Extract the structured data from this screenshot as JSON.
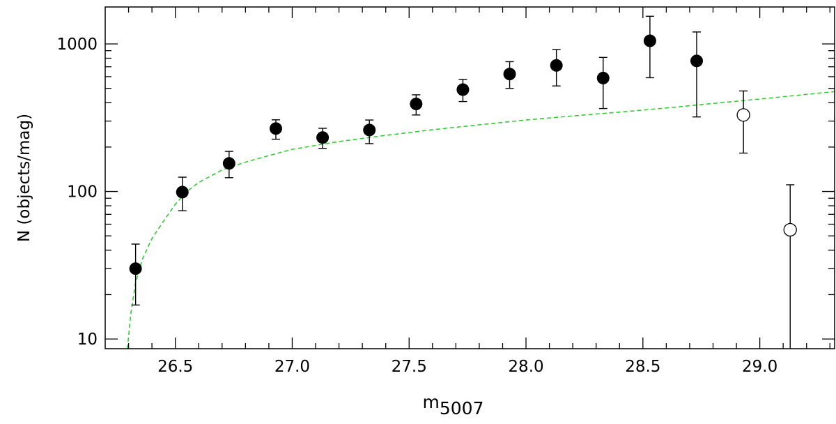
{
  "chart_data": {
    "type": "scatter",
    "title": "",
    "xlabel": "m",
    "xlabel_sub": "5007",
    "ylabel": "N (objects/mag)",
    "x_scale": "linear",
    "y_scale": "log",
    "xlim": [
      26.2,
      29.32
    ],
    "ylim": [
      8.6,
      1780
    ],
    "x_ticks": [
      26.5,
      27.0,
      27.5,
      28.0,
      28.5,
      29.0
    ],
    "x_tick_labels": [
      "26.5",
      "27.0",
      "27.5",
      "28.0",
      "28.5",
      "29.0"
    ],
    "y_ticks": [
      10,
      100,
      1000
    ],
    "y_tick_labels": [
      "10",
      "100",
      "1000"
    ],
    "grid": false,
    "legend": "none",
    "series": [
      {
        "marker": "filled-circle",
        "color": "#000000",
        "points": [
          {
            "x": 26.33,
            "y": 30,
            "lo": 17,
            "hi": 44
          },
          {
            "x": 26.53,
            "y": 99,
            "lo": 74,
            "hi": 125
          },
          {
            "x": 26.73,
            "y": 155,
            "lo": 124,
            "hi": 187
          },
          {
            "x": 26.93,
            "y": 267,
            "lo": 226,
            "hi": 306
          },
          {
            "x": 27.13,
            "y": 232,
            "lo": 196,
            "hi": 268
          },
          {
            "x": 27.33,
            "y": 261,
            "lo": 211,
            "hi": 305
          },
          {
            "x": 27.53,
            "y": 392,
            "lo": 330,
            "hi": 452
          },
          {
            "x": 27.73,
            "y": 490,
            "lo": 407,
            "hi": 575
          },
          {
            "x": 27.93,
            "y": 625,
            "lo": 499,
            "hi": 758
          },
          {
            "x": 28.13,
            "y": 715,
            "lo": 519,
            "hi": 915
          },
          {
            "x": 28.33,
            "y": 587,
            "lo": 365,
            "hi": 810
          },
          {
            "x": 28.53,
            "y": 1050,
            "lo": 590,
            "hi": 1540
          },
          {
            "x": 28.73,
            "y": 767,
            "lo": 320,
            "hi": 1205
          }
        ]
      },
      {
        "marker": "open-circle",
        "color": "#000000",
        "points": [
          {
            "x": 28.93,
            "y": 330,
            "lo": 182,
            "hi": 480
          },
          {
            "x": 29.13,
            "y": 55,
            "lo": 8.6,
            "hi": 111
          }
        ]
      }
    ],
    "fit_curve": {
      "style": "dashed",
      "color": "#33cc33",
      "points": [
        [
          26.295,
          8.6
        ],
        [
          26.31,
          15
        ],
        [
          26.33,
          24
        ],
        [
          26.36,
          35
        ],
        [
          26.4,
          48
        ],
        [
          26.45,
          63
        ],
        [
          26.5,
          82
        ],
        [
          26.55,
          100
        ],
        [
          26.6,
          115
        ],
        [
          26.7,
          140
        ],
        [
          26.8,
          158
        ],
        [
          26.9,
          175
        ],
        [
          27.0,
          193
        ],
        [
          27.2,
          218
        ],
        [
          27.4,
          240
        ],
        [
          27.6,
          262
        ],
        [
          27.8,
          283
        ],
        [
          28.0,
          305
        ],
        [
          28.2,
          325
        ],
        [
          28.4,
          345
        ],
        [
          28.6,
          368
        ],
        [
          28.8,
          395
        ],
        [
          29.0,
          423
        ],
        [
          29.2,
          455
        ],
        [
          29.32,
          475
        ]
      ]
    }
  }
}
